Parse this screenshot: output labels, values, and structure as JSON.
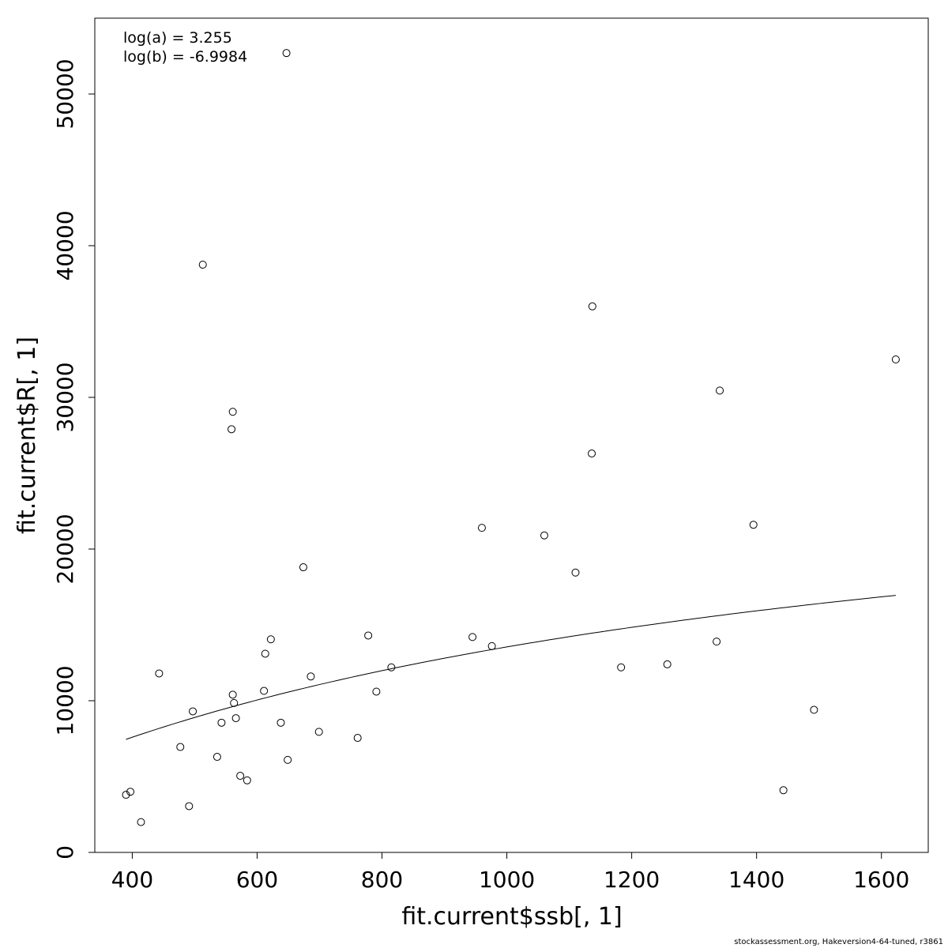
{
  "chart_data": {
    "type": "scatter",
    "xlabel": "fit.current$ssb[, 1]",
    "ylabel": "fit.current$R[, 1]",
    "xlim": [
      340,
      1675
    ],
    "ylim": [
      0,
      55000
    ],
    "x_ticks": [
      400,
      600,
      800,
      1000,
      1200,
      1400,
      1600
    ],
    "y_ticks": [
      0,
      10000,
      20000,
      30000,
      40000,
      50000
    ],
    "annotations": [
      "log(a) = 3.255",
      "log(b) = -6.9984"
    ],
    "grid": false,
    "points": [
      {
        "x": 390,
        "y": 3800
      },
      {
        "x": 397,
        "y": 4000
      },
      {
        "x": 414,
        "y": 2000
      },
      {
        "x": 443,
        "y": 11800
      },
      {
        "x": 477,
        "y": 6950
      },
      {
        "x": 491,
        "y": 3050
      },
      {
        "x": 497,
        "y": 9300
      },
      {
        "x": 513,
        "y": 38750
      },
      {
        "x": 536,
        "y": 6300
      },
      {
        "x": 543,
        "y": 8550
      },
      {
        "x": 559,
        "y": 27900
      },
      {
        "x": 561,
        "y": 29050
      },
      {
        "x": 561,
        "y": 10400
      },
      {
        "x": 563,
        "y": 9850
      },
      {
        "x": 566,
        "y": 8850
      },
      {
        "x": 573,
        "y": 5050
      },
      {
        "x": 584,
        "y": 4750
      },
      {
        "x": 611,
        "y": 10650
      },
      {
        "x": 613,
        "y": 13100
      },
      {
        "x": 622,
        "y": 14050
      },
      {
        "x": 638,
        "y": 8550
      },
      {
        "x": 647,
        "y": 52700
      },
      {
        "x": 649,
        "y": 6100
      },
      {
        "x": 674,
        "y": 18800
      },
      {
        "x": 686,
        "y": 11600
      },
      {
        "x": 699,
        "y": 7950
      },
      {
        "x": 761,
        "y": 7550
      },
      {
        "x": 778,
        "y": 14300
      },
      {
        "x": 791,
        "y": 10600
      },
      {
        "x": 815,
        "y": 12200
      },
      {
        "x": 945,
        "y": 14200
      },
      {
        "x": 960,
        "y": 21400
      },
      {
        "x": 976,
        "y": 13600
      },
      {
        "x": 1060,
        "y": 20900
      },
      {
        "x": 1110,
        "y": 18450
      },
      {
        "x": 1136,
        "y": 26300
      },
      {
        "x": 1137,
        "y": 36000
      },
      {
        "x": 1183,
        "y": 12200
      },
      {
        "x": 1257,
        "y": 12400
      },
      {
        "x": 1336,
        "y": 13900
      },
      {
        "x": 1341,
        "y": 30450
      },
      {
        "x": 1395,
        "y": 21600
      },
      {
        "x": 1443,
        "y": 4100
      },
      {
        "x": 1492,
        "y": 9400
      },
      {
        "x": 1623,
        "y": 32500
      }
    ],
    "fit_curve": {
      "type": "beverton-holt",
      "log_a": 3.255,
      "log_b": -6.9984,
      "x_range": [
        390,
        1623
      ]
    }
  },
  "footer": "stockassessment.org, Hakeversion4-64-tuned, r3861"
}
